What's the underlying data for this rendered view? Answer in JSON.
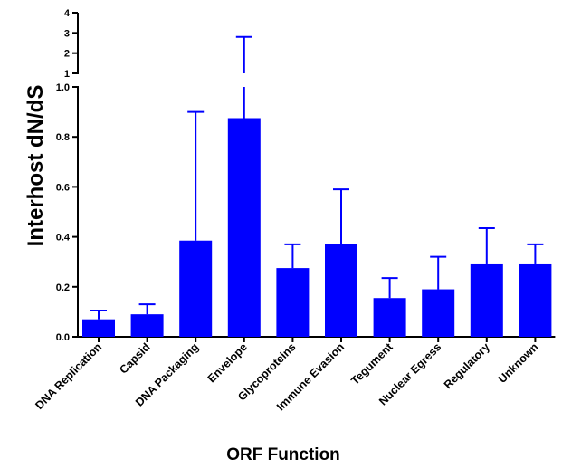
{
  "chart_data": {
    "type": "bar",
    "xlabel": "ORF Function",
    "ylabel": "Interhost dN/dS",
    "bar_color": "#0000ff",
    "categories": [
      "DNA Replication",
      "Capsid",
      "DNA Packaging",
      "Envelope",
      "Glycoproteins",
      "Immune Evasion",
      "Tegument",
      "Nuclear Egress",
      "Regulatory",
      "Unknown"
    ],
    "values": [
      0.07,
      0.09,
      0.385,
      0.875,
      0.275,
      0.37,
      0.155,
      0.19,
      0.29,
      0.29
    ],
    "error_upper": [
      0.105,
      0.13,
      0.9,
      2.8,
      0.37,
      0.59,
      0.235,
      0.32,
      0.435,
      0.37
    ],
    "y_axis_broken": true,
    "lower_segment": {
      "ylim": [
        0,
        1.0
      ],
      "ticks": [
        "0.0",
        "0.2",
        "0.4",
        "0.6",
        "0.8",
        "1.0"
      ]
    },
    "upper_segment": {
      "ylim": [
        1,
        4
      ],
      "ticks": [
        "1",
        "2",
        "3",
        "4"
      ]
    }
  }
}
